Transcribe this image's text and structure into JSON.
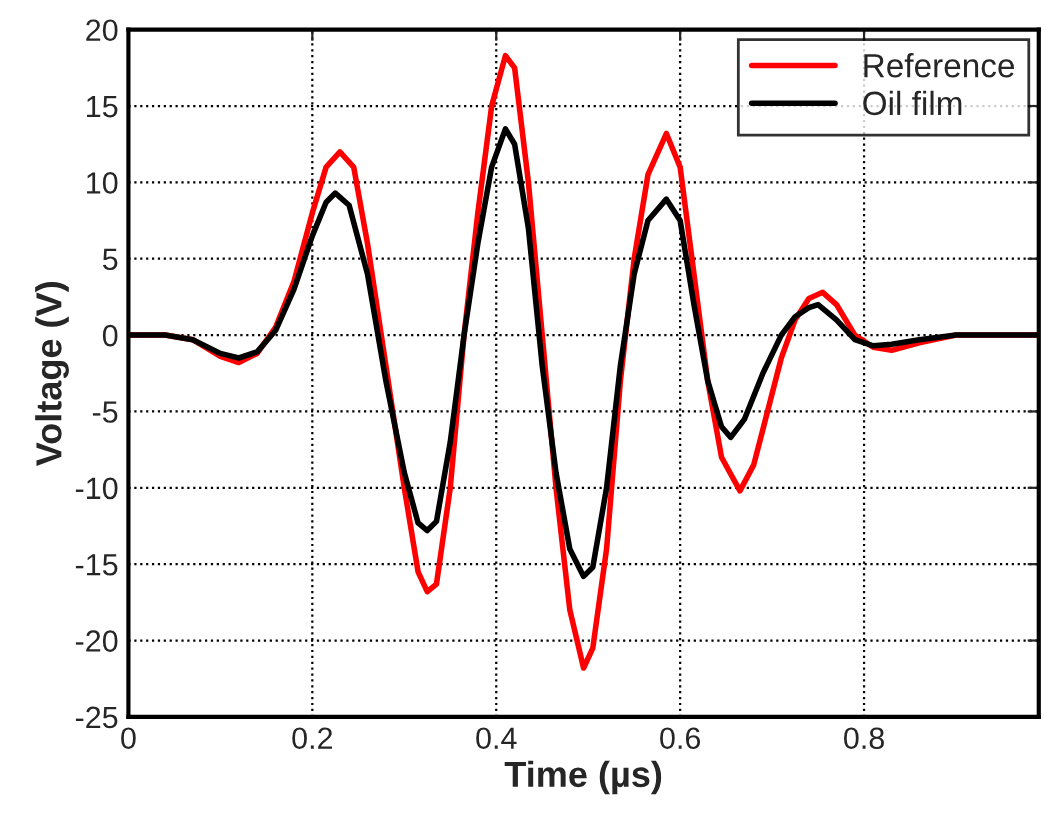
{
  "chart_data": {
    "type": "line",
    "xlabel": "Time (µs)",
    "ylabel": "Voltage (V)",
    "xlim": [
      0,
      0.99
    ],
    "ylim": [
      -25,
      20
    ],
    "xticks": [
      0,
      0.2,
      0.4,
      0.6,
      0.8
    ],
    "yticks": [
      -25,
      -20,
      -15,
      -10,
      -5,
      0,
      5,
      10,
      15,
      20
    ],
    "grid": true,
    "legend": "top right",
    "series": [
      {
        "name": "Reference",
        "color": "#ff0000",
        "x": [
          0,
          0.04,
          0.07,
          0.1,
          0.12,
          0.14,
          0.16,
          0.18,
          0.2,
          0.215,
          0.23,
          0.245,
          0.26,
          0.28,
          0.3,
          0.315,
          0.325,
          0.335,
          0.35,
          0.365,
          0.38,
          0.395,
          0.41,
          0.42,
          0.435,
          0.45,
          0.465,
          0.48,
          0.495,
          0.505,
          0.52,
          0.535,
          0.55,
          0.565,
          0.585,
          0.6,
          0.615,
          0.63,
          0.645,
          0.665,
          0.68,
          0.695,
          0.71,
          0.725,
          0.74,
          0.755,
          0.77,
          0.79,
          0.81,
          0.83,
          0.86,
          0.9,
          0.99
        ],
        "values": [
          0,
          0,
          -0.3,
          -1.4,
          -1.8,
          -1.2,
          0.5,
          3.5,
          8,
          11,
          12,
          11,
          6,
          -2,
          -10,
          -15.5,
          -16.8,
          -16.3,
          -10,
          0,
          8,
          15,
          18.3,
          17.5,
          10,
          0,
          -10,
          -18,
          -21.8,
          -20.5,
          -14,
          -3,
          5,
          10.5,
          13.2,
          11,
          4,
          -3,
          -8,
          -10.2,
          -8.5,
          -5,
          -1.5,
          1,
          2.4,
          2.8,
          2,
          0,
          -0.8,
          -1,
          -0.5,
          0,
          0
        ]
      },
      {
        "name": "Oil film",
        "color": "#000000",
        "x": [
          0,
          0.04,
          0.07,
          0.1,
          0.12,
          0.14,
          0.16,
          0.18,
          0.2,
          0.215,
          0.225,
          0.24,
          0.26,
          0.28,
          0.3,
          0.315,
          0.325,
          0.335,
          0.35,
          0.365,
          0.38,
          0.395,
          0.41,
          0.42,
          0.435,
          0.45,
          0.465,
          0.48,
          0.495,
          0.505,
          0.52,
          0.535,
          0.55,
          0.565,
          0.585,
          0.6,
          0.615,
          0.63,
          0.645,
          0.655,
          0.67,
          0.69,
          0.71,
          0.725,
          0.74,
          0.75,
          0.77,
          0.79,
          0.81,
          0.83,
          0.86,
          0.9,
          0.99
        ],
        "values": [
          0,
          0,
          -0.3,
          -1.2,
          -1.5,
          -1.1,
          0.3,
          3,
          6.5,
          8.7,
          9.3,
          8.5,
          4,
          -3,
          -9,
          -12.3,
          -12.8,
          -12.2,
          -7,
          0,
          6,
          11,
          13.5,
          12.5,
          7,
          -2,
          -9,
          -14,
          -15.8,
          -15.2,
          -10,
          -2,
          4,
          7.5,
          8.9,
          7.5,
          2,
          -3,
          -6,
          -6.7,
          -5.5,
          -2.5,
          0,
          1.2,
          1.8,
          2,
          1,
          -0.3,
          -0.7,
          -0.6,
          -0.3,
          0,
          0
        ]
      }
    ]
  }
}
